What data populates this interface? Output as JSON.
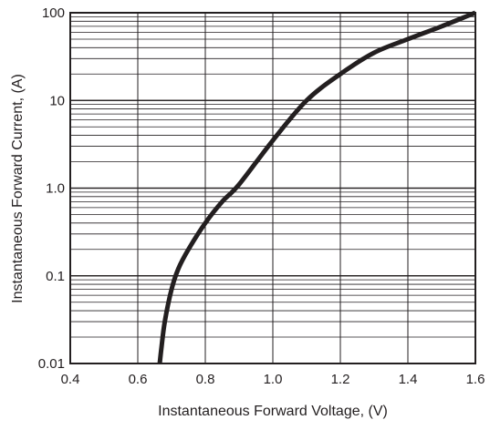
{
  "chart_data": {
    "type": "line",
    "title": "",
    "xlabel": "Instantaneous Forward Voltage, (V)",
    "ylabel": "Instantaneous Forward Current, (A)",
    "xlim": [
      0.4,
      1.6
    ],
    "ylim": [
      0.01,
      100
    ],
    "yscale": "log",
    "grid": true,
    "x_ticks": [
      0.4,
      0.6,
      0.8,
      1.0,
      1.2,
      1.4,
      1.6
    ],
    "x_tick_labels": [
      "0.4",
      "0.6",
      "0.8",
      "1.0",
      "1.2",
      "1.4",
      "1.6"
    ],
    "y_ticks": [
      0.01,
      0.1,
      1.0,
      10,
      100
    ],
    "y_tick_labels": [
      "0.01",
      "0.1",
      "1.0",
      "10",
      "100"
    ],
    "series": [
      {
        "color": "#231f20",
        "x": [
          0.665,
          0.67,
          0.68,
          0.7,
          0.72,
          0.75,
          0.8,
          0.85,
          0.9,
          1.0,
          1.1,
          1.2,
          1.3,
          1.4,
          1.5,
          1.6
        ],
        "y": [
          0.01,
          0.015,
          0.03,
          0.07,
          0.12,
          0.2,
          0.4,
          0.7,
          1.1,
          3.5,
          10,
          20,
          35,
          50,
          70,
          100
        ]
      }
    ]
  }
}
